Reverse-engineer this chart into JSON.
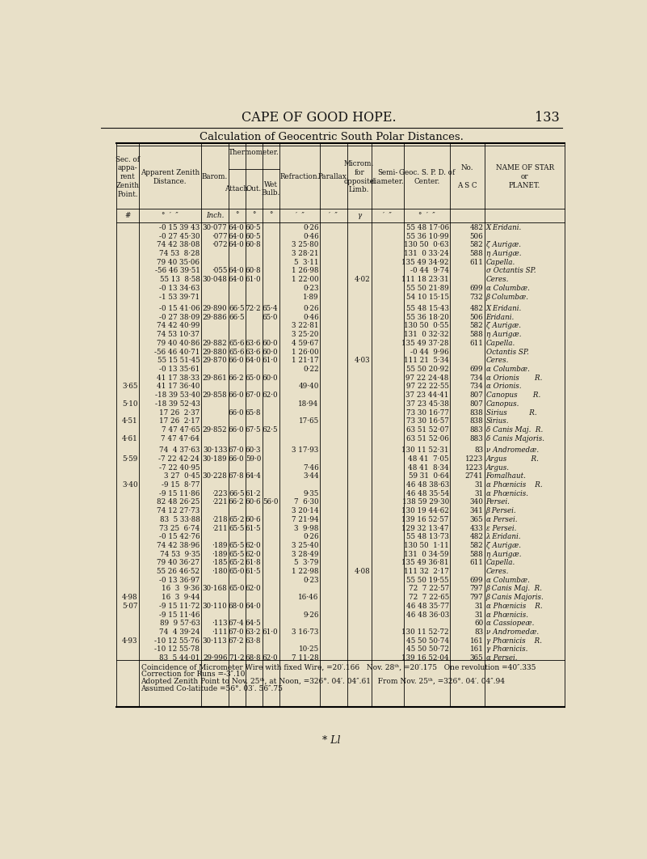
{
  "page_bg": "#e8e0c8",
  "header_title": "CAPE OF GOOD HOPE.",
  "header_page": "133",
  "table_title": "Calculation of Geocentric South Polar Distances.",
  "footer_note": "* Ll",
  "coincidence_line1": "Coincidence of Micrometer Wire with fixed Wire, =20′.166   Nov. 28ᵗʰ, =20′.175   One revolution =40″.335",
  "coincidence_line2": "Correction for Runs =-3″.10",
  "coincidence_line3": "Adopted Zenith Point to Nov. 25ᵗʰ, at Noon, =326°. 04′. 04″.61   From Nov. 25ᵗʰ, =326°. 04′. 04″.94",
  "coincidence_line4": "Assumed Co-latitude =56°. 03′. 56″.75",
  "table_data": [
    {
      "sec": "",
      "zen": "-0 15 39 43",
      "bar": "30·077",
      "att": "64·0",
      "out": "60·5",
      "wet": "",
      "ref": "0·26",
      "par": "",
      "mic": "",
      "sem": "",
      "geo": "55 48 17·06",
      "no": "482",
      "name": "X Eridani."
    },
    {
      "sec": "",
      "zen": "-0 27 45·30",
      "bar": "·077",
      "att": "64·0",
      "out": "60·5",
      "wet": "",
      "ref": "0·46",
      "par": "",
      "mic": "",
      "sem": "",
      "geo": "55 36 10·99",
      "no": "506",
      "name": ""
    },
    {
      "sec": "",
      "zen": "74 42 38·08",
      "bar": "·072",
      "att": "64·0",
      "out": "60·8",
      "wet": "",
      "ref": "3 25·80",
      "par": "",
      "mic": "",
      "sem": "",
      "geo": "130 50  0·63",
      "no": "582",
      "name": "ζ Aurigæ."
    },
    {
      "sec": "",
      "zen": "74 53  8·28",
      "bar": "",
      "att": "",
      "out": "",
      "wet": "",
      "ref": "3 28·21",
      "par": "",
      "mic": "",
      "sem": "",
      "geo": "131  0 33·24",
      "no": "588",
      "name": "η Aurigæ."
    },
    {
      "sec": "",
      "zen": "79 40 35·06",
      "bar": "",
      "att": "",
      "out": "",
      "wet": "",
      "ref": "5  3·11",
      "par": "",
      "mic": "",
      "sem": "",
      "geo": "135 49 34·92",
      "no": "611",
      "name": "Capella."
    },
    {
      "sec": "",
      "zen": "-56 46 39·51",
      "bar": "·055",
      "att": "64·0",
      "out": "60·8",
      "wet": "",
      "ref": "1 26·98",
      "par": "",
      "mic": "",
      "sem": "",
      "geo": "-0 44  9·74",
      "no": "",
      "name": "σ Octantis SP."
    },
    {
      "sec": "",
      "zen": "55 13  8·58",
      "bar": "30·048",
      "att": "64·0",
      "out": "61·0",
      "wet": "",
      "ref": "1 22·00",
      "par": "",
      "mic": "4·02",
      "sem": "",
      "geo": "111 18 23·31",
      "no": "",
      "name": "Ceres."
    },
    {
      "sec": "",
      "zen": "-0 13 34·63",
      "bar": "",
      "att": "",
      "out": "",
      "wet": "",
      "ref": "0·23",
      "par": "",
      "mic": "",
      "sem": "",
      "geo": "55 50 21·89",
      "no": "699",
      "name": "α Columbæ."
    },
    {
      "sec": "",
      "zen": "-1 53 39·71",
      "bar": "",
      "att": "",
      "out": "",
      "wet": "",
      "ref": "1·89",
      "par": "",
      "mic": "",
      "sem": "",
      "geo": "54 10 15·15",
      "no": "732",
      "name": "β Columbæ."
    },
    {
      "SPACER": true
    },
    {
      "sec": "",
      "zen": "-0 15 41·06",
      "bar": "29·890",
      "att": "66·5",
      "out": "72·2",
      "wet": "65·4",
      "ref": "0·26",
      "par": "",
      "mic": "",
      "sem": "",
      "geo": "55 48 15·43",
      "no": "482",
      "name": "X Eridani."
    },
    {
      "sec": "",
      "zen": "-0 27 38·09",
      "bar": "29·886",
      "att": "66·5",
      "out": "",
      "wet": "65·0",
      "ref": "0·46",
      "par": "",
      "mic": "",
      "sem": "",
      "geo": "55 36 18·20",
      "no": "506",
      "name": "Eridani."
    },
    {
      "sec": "",
      "zen": "74 42 40·99",
      "bar": "",
      "att": "",
      "out": "",
      "wet": "",
      "ref": "3 22·81",
      "par": "",
      "mic": "",
      "sem": "",
      "geo": "130 50  0·55",
      "no": "582",
      "name": "ζ Aurigæ."
    },
    {
      "sec": "",
      "zen": "74 53 10·37",
      "bar": "",
      "att": "",
      "out": "",
      "wet": "",
      "ref": "3 25·20",
      "par": "",
      "mic": "",
      "sem": "",
      "geo": "131  0 32·32",
      "no": "588",
      "name": "η Aurigæ."
    },
    {
      "sec": "",
      "zen": "79 40 40·86",
      "bar": "29·882",
      "att": "65·6",
      "out": "63·6",
      "wet": "60·0",
      "ref": "4 59·67",
      "par": "",
      "mic": "",
      "sem": "",
      "geo": "135 49 37·28",
      "no": "611",
      "name": "Capella."
    },
    {
      "sec": "",
      "zen": "-56 46 40·71",
      "bar": "29·880",
      "att": "65·6",
      "out": "63·6",
      "wet": "60·0",
      "ref": "1 26·00",
      "par": "",
      "mic": "",
      "sem": "",
      "geo": "-0 44  9·96",
      "no": "",
      "name": "Octantis SP."
    },
    {
      "sec": "",
      "zen": "55 15 51·45",
      "bar": "29·870",
      "att": "66·0",
      "out": "64·0",
      "wet": "61·0",
      "ref": "1 21·17",
      "par": "",
      "mic": "4·03",
      "sem": "",
      "geo": "111 21  5·34",
      "no": "",
      "name": "Ceres."
    },
    {
      "sec": "",
      "zen": "-0 13 35·61",
      "bar": "",
      "att": "",
      "out": "",
      "wet": "",
      "ref": "0·22",
      "par": "",
      "mic": "",
      "sem": "",
      "geo": "55 50 20·92",
      "no": "699",
      "name": "α Columbæ."
    },
    {
      "sec": "",
      "zen": "41 17 38·33",
      "bar": "29·861",
      "att": "66·2",
      "out": "65·0",
      "wet": "60·0",
      "ref": "",
      "par": "",
      "mic": "",
      "sem": "",
      "geo": "97 22 24·48",
      "no": "734",
      "name": "α Orionis       R."
    },
    {
      "sec": "3·65",
      "zen": "41 17 36·40",
      "bar": "",
      "att": "",
      "out": "",
      "wet": "",
      "ref": "49·40",
      "par": "",
      "mic": "",
      "sem": "",
      "geo": "97 22 22·55",
      "no": "734",
      "name": "α Orionis."
    },
    {
      "sec": "",
      "zen": "-18 39 53·40",
      "bar": "29·858",
      "att": "66·0",
      "out": "67·0",
      "wet": "62·0",
      "ref": "",
      "par": "",
      "mic": "",
      "sem": "",
      "geo": "37 23 44·41",
      "no": "807",
      "name": "Canopus       R."
    },
    {
      "sec": "5·10",
      "zen": "-18 39 52·43",
      "bar": "",
      "att": "",
      "out": "",
      "wet": "",
      "ref": "18·94",
      "par": "",
      "mic": "",
      "sem": "",
      "geo": "37 23 45·38",
      "no": "807",
      "name": "Canopus."
    },
    {
      "sec": "",
      "zen": "17 26  2·37",
      "bar": "",
      "att": "66·0",
      "out": "65·8",
      "wet": "",
      "ref": "",
      "par": "",
      "mic": "",
      "sem": "",
      "geo": "73 30 16·77",
      "no": "838",
      "name": "Sirius          R."
    },
    {
      "sec": "4·51",
      "zen": "17 26  2·17",
      "bar": "",
      "att": "",
      "out": "",
      "wet": "",
      "ref": "17·65",
      "par": "",
      "mic": "",
      "sem": "",
      "geo": "73 30 16·57",
      "no": "838",
      "name": "Sirius."
    },
    {
      "sec": "",
      "zen": "7 47 47·65",
      "bar": "29·852",
      "att": "66·0",
      "out": "67·5",
      "wet": "62·5",
      "ref": "",
      "par": "",
      "mic": "",
      "sem": "",
      "geo": "63 51 52·07",
      "no": "883",
      "name": "δ Canis Maj.  R."
    },
    {
      "sec": "4·61",
      "zen": "7 47 47·64",
      "bar": "",
      "att": "",
      "out": "",
      "wet": "",
      "ref": "",
      "par": "",
      "mic": "",
      "sem": "",
      "geo": "63 51 52·06",
      "no": "883",
      "name": "δ Canis Majoris."
    },
    {
      "SPACER": true
    },
    {
      "sec": "",
      "zen": "74  4 37·63",
      "bar": "30·133",
      "att": "67·0",
      "out": "60·3",
      "wet": "",
      "ref": "3 17·93",
      "par": "",
      "mic": "",
      "sem": "",
      "geo": "130 11 52·31",
      "no": "83",
      "name": "ν Andromedæ."
    },
    {
      "sec": "5·59",
      "zen": "-7 22 42·24",
      "bar": "30·189",
      "att": "66·0",
      "out": "59·0",
      "wet": "",
      "ref": "",
      "par": "",
      "mic": "",
      "sem": "",
      "geo": "48 41  7·05",
      "no": "1223",
      "name": "Argus           R."
    },
    {
      "sec": "",
      "zen": "-7 22 40·95",
      "bar": "",
      "att": "",
      "out": "",
      "wet": "",
      "ref": "7·46",
      "par": "",
      "mic": "",
      "sem": "",
      "geo": "48 41  8·34",
      "no": "1223",
      "name": "Argus."
    },
    {
      "sec": "",
      "zen": "3 27  0·45",
      "bar": "30·228",
      "att": "67·8",
      "out": "64·4",
      "wet": "",
      "ref": "3·44",
      "par": "",
      "mic": "",
      "sem": "",
      "geo": "59 31  0·64",
      "no": "2741",
      "name": "Fomalhaut."
    },
    {
      "sec": "3·40",
      "zen": "-9 15  8·77",
      "bar": "",
      "att": "",
      "out": "",
      "wet": "",
      "ref": "",
      "par": "",
      "mic": "",
      "sem": "",
      "geo": "46 48 38·63",
      "no": "31",
      "name": "α Phœnicis    R."
    },
    {
      "sec": "",
      "zen": "-9 15 11·86",
      "bar": "·223",
      "att": "66·5",
      "out": "61·2",
      "wet": "",
      "ref": "9·35",
      "par": "",
      "mic": "",
      "sem": "",
      "geo": "46 48 35·54",
      "no": "31",
      "name": "α Phœnicis."
    },
    {
      "sec": "",
      "zen": "82 48 26·25",
      "bar": "·221",
      "att": "66·2",
      "out": "60·6",
      "wet": "56·0",
      "ref": "7  6·30",
      "par": "",
      "mic": "",
      "sem": "",
      "geo": "138 59 29·30",
      "no": "340",
      "name": "Persei."
    },
    {
      "sec": "",
      "zen": "74 12 27·73",
      "bar": "",
      "att": "",
      "out": "",
      "wet": "",
      "ref": "3 20·14",
      "par": "",
      "mic": "",
      "sem": "",
      "geo": "130 19 44·62",
      "no": "341",
      "name": "β Persei."
    },
    {
      "sec": "",
      "zen": "83  5 33·88",
      "bar": "·218",
      "att": "65·2",
      "out": "60·6",
      "wet": "",
      "ref": "7 21·94",
      "par": "",
      "mic": "",
      "sem": "",
      "geo": "139 16 52·57",
      "no": "365",
      "name": "α Persei."
    },
    {
      "sec": "",
      "zen": "73 25  6·74",
      "bar": "·211",
      "att": "65·5",
      "out": "61·5",
      "wet": "",
      "ref": "3  9·98",
      "par": "",
      "mic": "",
      "sem": "",
      "geo": "129 32 13·47",
      "no": "433",
      "name": "ε Persei."
    },
    {
      "sec": "",
      "zen": "-0 15 42·76",
      "bar": "",
      "att": "",
      "out": "",
      "wet": "",
      "ref": "0·26",
      "par": "",
      "mic": "",
      "sem": "",
      "geo": "55 48 13·73",
      "no": "482",
      "name": "λ Eridani."
    },
    {
      "sec": "",
      "zen": "74 42 38·96",
      "bar": "·189",
      "att": "65·5",
      "out": "62·0",
      "wet": "",
      "ref": "3 25·40",
      "par": "",
      "mic": "",
      "sem": "",
      "geo": "130 50  1·11",
      "no": "582",
      "name": "ζ Aurigæ."
    },
    {
      "sec": "",
      "zen": "74 53  9·35",
      "bar": "·189",
      "att": "65·5",
      "out": "62·0",
      "wet": "",
      "ref": "3 28·49",
      "par": "",
      "mic": "",
      "sem": "",
      "geo": "131  0 34·59",
      "no": "588",
      "name": "η Aurigæ."
    },
    {
      "sec": "",
      "zen": "79 40 36·27",
      "bar": "·185",
      "att": "65·2",
      "out": "61·8",
      "wet": "",
      "ref": "5  3·79",
      "par": "",
      "mic": "",
      "sem": "",
      "geo": "135 49 36·81",
      "no": "611",
      "name": "Capella."
    },
    {
      "sec": "",
      "zen": "55 26 46·52",
      "bar": "·180",
      "att": "65·0",
      "out": "61·5",
      "wet": "",
      "ref": "1 22·98",
      "par": "",
      "mic": "4·08",
      "sem": "",
      "geo": "111 32  2·17",
      "no": "",
      "name": "Ceres."
    },
    {
      "sec": "",
      "zen": "-0 13 36·97",
      "bar": "",
      "att": "",
      "out": "",
      "wet": "",
      "ref": "0·23",
      "par": "",
      "mic": "",
      "sem": "",
      "geo": "55 50 19·55",
      "no": "699",
      "name": "α Columbæ."
    },
    {
      "sec": "",
      "zen": "16  3  9·36",
      "bar": "30·168",
      "att": "65·0",
      "out": "62·0",
      "wet": "",
      "ref": "",
      "par": "",
      "mic": "",
      "sem": "",
      "geo": "72  7 22·57",
      "no": "797",
      "name": "β Canis Maj.  R."
    },
    {
      "sec": "4·98",
      "zen": "16  3  9·44",
      "bar": "",
      "att": "",
      "out": "",
      "wet": "",
      "ref": "16·46",
      "par": "",
      "mic": "",
      "sem": "",
      "geo": "72  7 22·65",
      "no": "797",
      "name": "β Canis Majoris."
    },
    {
      "sec": "5·07",
      "zen": "-9 15 11·72",
      "bar": "30·110",
      "att": "68·0",
      "out": "64·0",
      "wet": "",
      "ref": "",
      "par": "",
      "mic": "",
      "sem": "",
      "geo": "46 48 35·77",
      "no": "31",
      "name": "α Phœnicis    R."
    },
    {
      "sec": "",
      "zen": "-9 15 11·46",
      "bar": "",
      "att": "",
      "out": "",
      "wet": "",
      "ref": "9·26",
      "par": "",
      "mic": "",
      "sem": "",
      "geo": "46 48 36·03",
      "no": "31",
      "name": "α Phœnicis."
    },
    {
      "sec": "",
      "zen": "89  9 57·63",
      "bar": "·113",
      "att": "67·4",
      "out": "64·5",
      "wet": "",
      "ref": "",
      "par": "",
      "mic": "",
      "sem": "",
      "geo": "",
      "no": "60",
      "name": "α Cassiopeæ."
    },
    {
      "sec": "",
      "zen": "74  4 39·24",
      "bar": "·111",
      "att": "67·0",
      "out": "63·2",
      "wet": "61·0",
      "ref": "3 16·73",
      "par": "",
      "mic": "",
      "sem": "",
      "geo": "130 11 52·72",
      "no": "83",
      "name": "ν Andromedæ."
    },
    {
      "sec": "4·93",
      "zen": "-10 12 55·76",
      "bar": "30·113",
      "att": "67·2",
      "out": "63·8",
      "wet": "",
      "ref": "",
      "par": "",
      "mic": "",
      "sem": "",
      "geo": "45 50 50·74",
      "no": "161",
      "name": "γ Phœnicis    R."
    },
    {
      "sec": "",
      "zen": "-10 12 55·78",
      "bar": "",
      "att": "",
      "out": "",
      "wet": "",
      "ref": "10·25",
      "par": "",
      "mic": "",
      "sem": "",
      "geo": "45 50 50·72",
      "no": "161",
      "name": "γ Phœnicis."
    },
    {
      "sec": "",
      "zen": "83  5 44·01",
      "bar": "29·996",
      "att": "71·2",
      "out": "68·8",
      "wet": "62·0",
      "ref": "7 11·28",
      "par": "",
      "mic": "",
      "sem": "",
      "geo": "139 16 52·04",
      "no": "365",
      "name": "α Persei."
    }
  ]
}
